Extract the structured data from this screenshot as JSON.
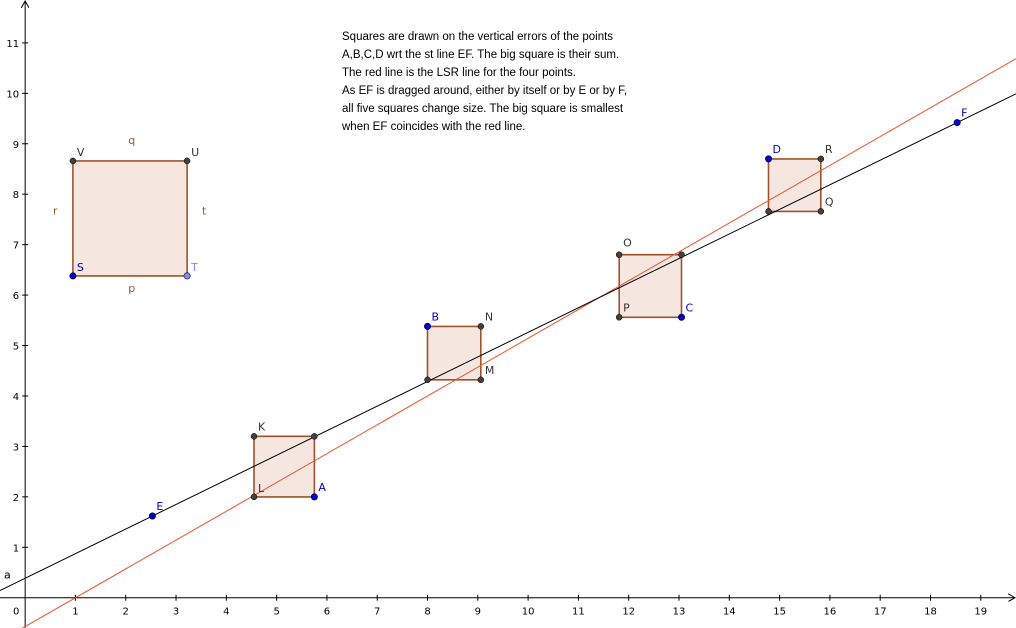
{
  "note": {
    "lines": [
      "Squares are drawn on the vertical errors of the points",
      "A,B,C,D wrt the st line EF. The big square is their sum.",
      "The red line is the LSR line for the four points.",
      "As EF is dragged around, either by itself or by E or by F,",
      "all five squares change size. The big square is smallest",
      "when EF coincides with the red line."
    ]
  },
  "colors": {
    "axis": "#000000",
    "tick_label": "#000000",
    "black_line": "#000000",
    "red_line": "#e8532f",
    "square_stroke": "#a0522d",
    "square_fill": "#f5e6e0",
    "free_point": "#0000cc",
    "dependent_point": "#404040",
    "light_point": "#8888ee",
    "point_label_blue": "#0000cc",
    "point_label_gray": "#333333",
    "side_label": "#a0522d"
  },
  "axes": {
    "xlim": [
      -0.5,
      19.7
    ],
    "ylim": [
      -0.6,
      11.85
    ],
    "x_ticks": [
      1,
      2,
      3,
      4,
      5,
      6,
      7,
      8,
      9,
      10,
      11,
      12,
      13,
      14,
      15,
      16,
      17,
      18,
      19
    ],
    "y_ticks": [
      1,
      2,
      3,
      4,
      5,
      6,
      7,
      8,
      9,
      10,
      11
    ],
    "origin_label": "0"
  },
  "lines": {
    "ef": {
      "name": "a",
      "point1": [
        2.53,
        1.62
      ],
      "point2": [
        18.53,
        9.42
      ]
    },
    "lsr": {
      "point1": [
        1.0,
        0.0
      ],
      "point2": [
        15.0,
        8.0
      ]
    }
  },
  "points": [
    {
      "name": "A",
      "label": "A",
      "x": 5.75,
      "y": 2.0,
      "kind": "free"
    },
    {
      "name": "B",
      "label": "B",
      "x": 8.0,
      "y": 5.38,
      "kind": "free"
    },
    {
      "name": "C",
      "label": "C",
      "x": 13.05,
      "y": 5.56,
      "kind": "free"
    },
    {
      "name": "D",
      "label": "D",
      "x": 14.78,
      "y": 8.7,
      "kind": "free"
    },
    {
      "name": "E",
      "label": "E",
      "x": 2.53,
      "y": 1.62,
      "kind": "free"
    },
    {
      "name": "F",
      "label": "F",
      "x": 18.53,
      "y": 9.42,
      "kind": "free"
    },
    {
      "name": "S",
      "label": "S",
      "x": 0.95,
      "y": 6.38,
      "kind": "free"
    },
    {
      "name": "T",
      "label": "T",
      "x": 3.22,
      "y": 6.38,
      "kind": "light"
    }
  ],
  "squares": [
    {
      "name": "square-a",
      "vertices": [
        [
          4.55,
          2.0
        ],
        [
          5.75,
          2.0
        ],
        [
          5.75,
          3.2
        ],
        [
          4.55,
          3.2
        ]
      ],
      "vertex_labels": [
        {
          "label": "L",
          "x": 4.55,
          "y": 2.0,
          "kind": "dependent"
        },
        {
          "label": "K",
          "x": 4.55,
          "y": 3.2,
          "kind": "dependent"
        }
      ],
      "extra_points": [
        [
          5.75,
          3.2
        ]
      ]
    },
    {
      "name": "square-b",
      "vertices": [
        [
          8.0,
          4.32
        ],
        [
          9.06,
          4.32
        ],
        [
          9.06,
          5.38
        ],
        [
          8.0,
          5.38
        ]
      ],
      "vertex_labels": [
        {
          "label": "M",
          "x": 9.06,
          "y": 4.32,
          "kind": "dependent"
        },
        {
          "label": "N",
          "x": 9.06,
          "y": 5.38,
          "kind": "dependent"
        }
      ],
      "extra_points": [
        [
          8.0,
          4.32
        ]
      ]
    },
    {
      "name": "square-c",
      "vertices": [
        [
          11.81,
          5.56
        ],
        [
          13.05,
          5.56
        ],
        [
          13.05,
          6.8
        ],
        [
          11.81,
          6.8
        ]
      ],
      "vertex_labels": [
        {
          "label": "P",
          "x": 11.81,
          "y": 5.56,
          "kind": "dependent"
        },
        {
          "label": "O",
          "x": 11.81,
          "y": 6.8,
          "kind": "dependent"
        }
      ],
      "extra_points": [
        [
          13.05,
          6.8
        ]
      ]
    },
    {
      "name": "square-d",
      "vertices": [
        [
          14.78,
          7.66
        ],
        [
          15.82,
          7.66
        ],
        [
          15.82,
          8.7
        ],
        [
          14.78,
          8.7
        ]
      ],
      "vertex_labels": [
        {
          "label": "Q",
          "x": 15.82,
          "y": 7.66,
          "kind": "dependent"
        },
        {
          "label": "R",
          "x": 15.82,
          "y": 8.7,
          "kind": "dependent"
        }
      ],
      "extra_points": [
        [
          14.78,
          7.66
        ]
      ]
    },
    {
      "name": "square-big",
      "vertices": [
        [
          0.95,
          6.38
        ],
        [
          3.22,
          6.38
        ],
        [
          3.22,
          8.66
        ],
        [
          0.95,
          8.66
        ]
      ],
      "vertex_labels": [
        {
          "label": "V",
          "x": 0.95,
          "y": 8.66,
          "kind": "dependent"
        },
        {
          "label": "U",
          "x": 3.22,
          "y": 8.66,
          "kind": "dependent"
        }
      ],
      "extra_points": []
    }
  ],
  "side_labels": [
    {
      "label": "q",
      "x": 2.12,
      "y": 9.0
    },
    {
      "label": "r",
      "x": 0.6,
      "y": 7.6
    },
    {
      "label": "t",
      "x": 3.56,
      "y": 7.6
    },
    {
      "label": "p",
      "x": 2.12,
      "y": 6.06
    }
  ]
}
